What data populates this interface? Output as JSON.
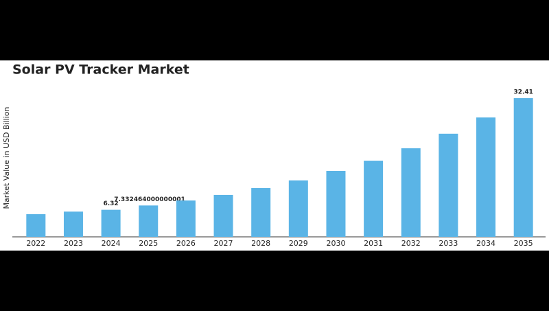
{
  "chart_data": {
    "type": "bar",
    "title": "Solar PV Tracker Market",
    "y_label": "Market Value in USD Billion",
    "categories": [
      "2022",
      "2023",
      "2024",
      "2025",
      "2026",
      "2027",
      "2028",
      "2029",
      "2030",
      "2031",
      "2032",
      "2033",
      "2034",
      "2035"
    ],
    "values": [
      5.3,
      5.9,
      6.32,
      7.332464000000001,
      8.5,
      9.8,
      11.4,
      13.2,
      15.4,
      17.8,
      20.7,
      24.1,
      27.9,
      32.41
    ],
    "labeled": [
      false,
      false,
      true,
      true,
      false,
      false,
      false,
      false,
      false,
      false,
      false,
      false,
      false,
      true
    ],
    "color": "#5ab4e6"
  }
}
